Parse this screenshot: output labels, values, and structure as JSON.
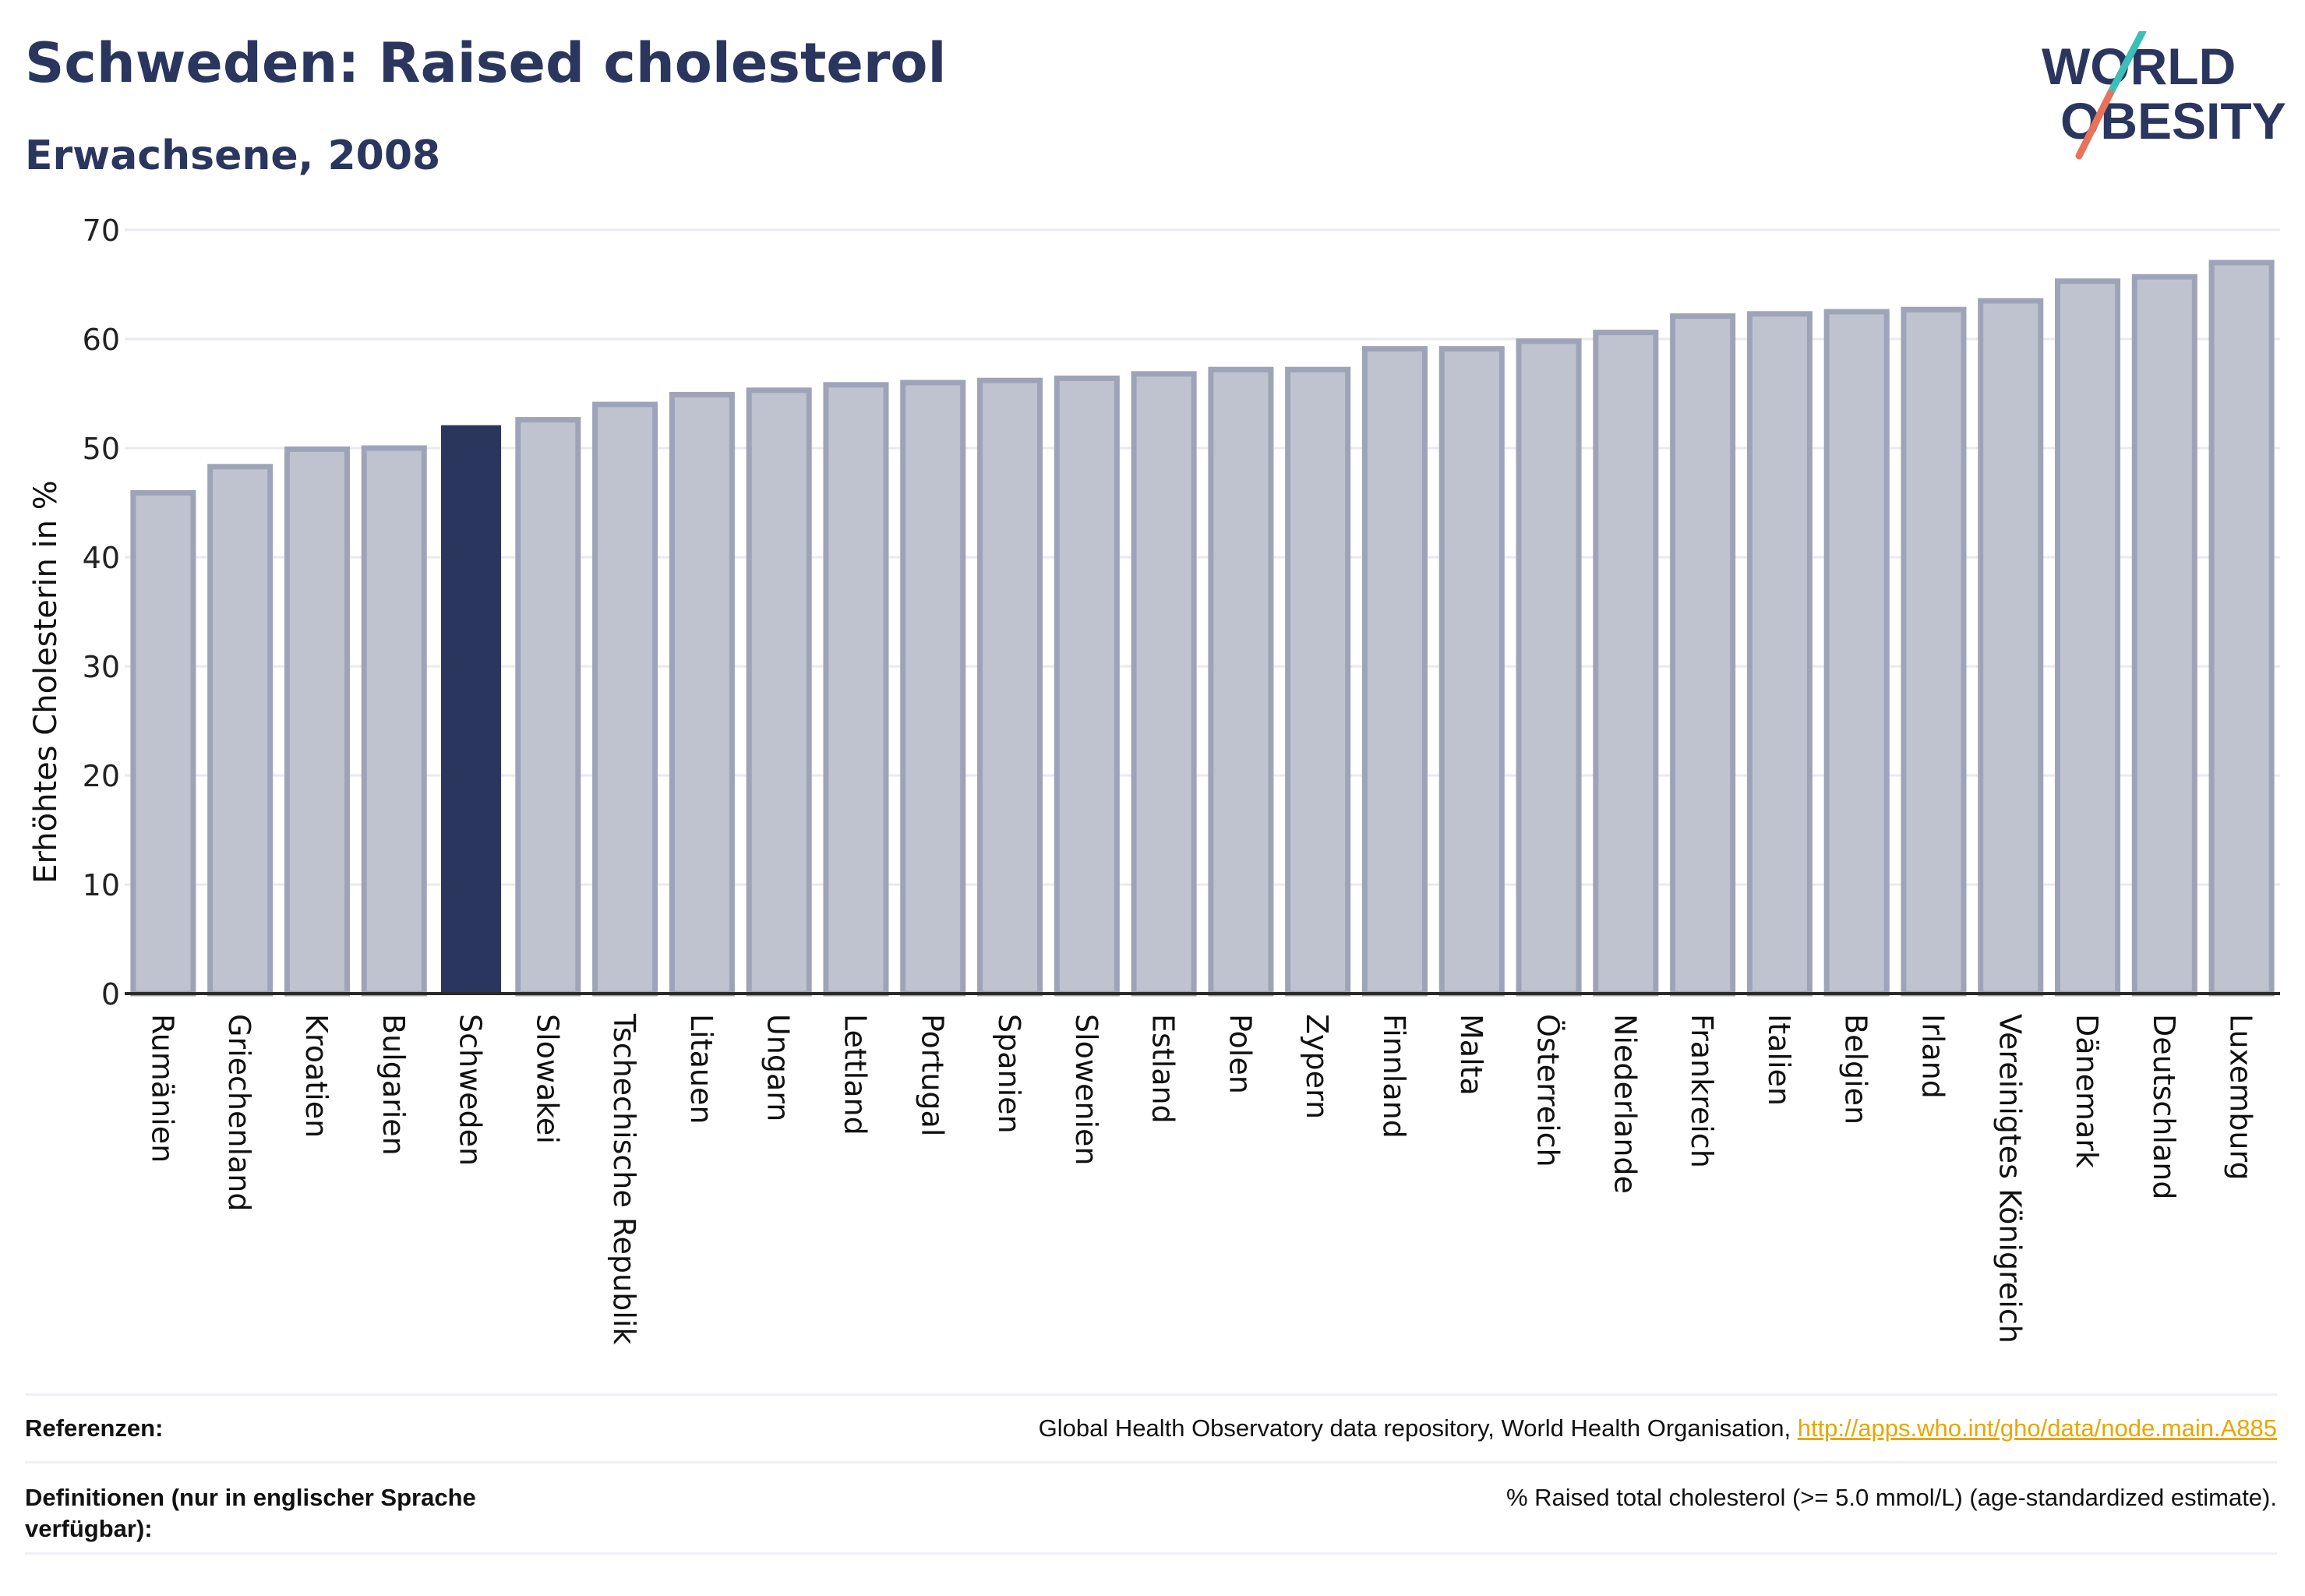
{
  "header": {
    "title": "Schweden: Raised cholesterol",
    "subtitle": "Erwachsene, 2008"
  },
  "logo": {
    "line1": "WORLD",
    "line2": "OBESITY",
    "colors": {
      "text": "#2a365e",
      "slash_top": "#3bbfb8",
      "slash_bottom": "#e8735a"
    }
  },
  "chart_data": {
    "type": "bar",
    "categories": [
      "Rumänien",
      "Griechenland",
      "Kroatien",
      "Bulgarien",
      "Schweden",
      "Slowakei",
      "Tschechische Republik",
      "Litauen",
      "Ungarn",
      "Lettland",
      "Portugal",
      "Spanien",
      "Slowenien",
      "Estland",
      "Polen",
      "Zypern",
      "Finnland",
      "Malta",
      "Österreich",
      "Niederlande",
      "Frankreich",
      "Italien",
      "Belgien",
      "Irland",
      "Vereinigtes Königreich",
      "Dänemark",
      "Deutschland",
      "Luxemburg"
    ],
    "values": [
      45.9,
      48.3,
      49.9,
      50.0,
      52.1,
      52.6,
      54.0,
      54.9,
      55.3,
      55.8,
      56.0,
      56.2,
      56.4,
      56.8,
      57.2,
      57.2,
      59.1,
      59.1,
      59.8,
      60.6,
      62.1,
      62.3,
      62.5,
      62.7,
      63.5,
      65.3,
      65.7,
      67.0
    ],
    "highlight": "Schweden",
    "ylabel": "Erhöhtes Cholesterin in %",
    "xlabel": "",
    "ylim": [
      0,
      70
    ],
    "yticks": [
      0,
      10,
      20,
      30,
      40,
      50,
      60,
      70
    ],
    "grid": true,
    "colors": {
      "bar": "#bfc3d0",
      "bar_edge": "#9ea4b8",
      "highlight": "#2a365e",
      "grid": "#e8eaf0",
      "axis": "#2a2a2a"
    }
  },
  "references": {
    "refs_label": "Referenzen:",
    "refs_text": "Global Health Observatory data repository, World Health Organisation, ",
    "refs_link": "http://apps.who.int/gho/data/node.main.A885",
    "defs_label": "Definitionen (nur in englischer Sprache verfügbar):",
    "defs_text": "% Raised total cholesterol (>= 5.0 mmol/L) (age-standardized estimate)."
  }
}
